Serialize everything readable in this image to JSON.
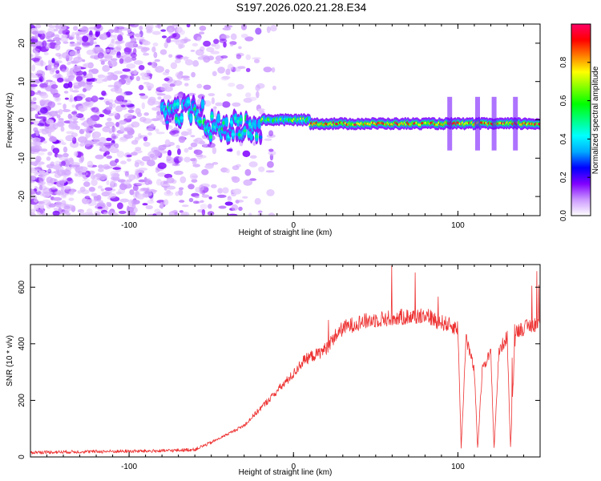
{
  "title": "S197.2026.020.21.28.E34",
  "chart_data": [
    {
      "type": "heatmap",
      "xlabel": "Height of straight line (km)",
      "ylabel": "Frequency (Hz)",
      "xlim": [
        -160,
        150
      ],
      "ylim": [
        -25,
        25
      ],
      "xticks": [
        -100,
        0,
        100
      ],
      "yticks": [
        -20,
        -10,
        0,
        10,
        20
      ],
      "colorbar": {
        "label": "Normalized spectral amplitude",
        "range": [
          0,
          1
        ],
        "ticks": [
          "0.0",
          "0.2",
          "0.4",
          "0.6",
          "0.8"
        ],
        "colors": [
          "#ffffff",
          "#cc99ff",
          "#8000ff",
          "#0000ff",
          "#00aaff",
          "#00ffff",
          "#00ff80",
          "#00ff00",
          "#80ff00",
          "#ffff00",
          "#ff8000",
          "#ff0000",
          "#ff0066"
        ]
      },
      "signal": {
        "segments": [
          {
            "x0": -80,
            "x1": -55,
            "freq": 2
          },
          {
            "x0": -55,
            "x1": -20,
            "freq": -2
          },
          {
            "x0": -20,
            "x1": 10,
            "freq": 0
          },
          {
            "x0": 10,
            "x1": 150,
            "freq": -1
          }
        ],
        "peak_amplitude": 1.0
      }
    },
    {
      "type": "line",
      "xlabel": "Height of straight line (km)",
      "ylabel": "SNR (10 * v/v)",
      "xlim": [
        -160,
        150
      ],
      "ylim": [
        0,
        680
      ],
      "xticks": [
        -100,
        0,
        100
      ],
      "yticks": [
        0,
        200,
        400,
        600
      ],
      "color": "#ee3333",
      "series": [
        {
          "name": "SNR",
          "x": [
            -160,
            -120,
            -80,
            -60,
            -50,
            -40,
            -30,
            -20,
            -10,
            -5,
            0,
            5,
            10,
            15,
            20,
            25,
            30,
            40,
            50,
            60,
            70,
            75,
            80,
            85,
            90,
            95,
            100,
            102,
            105,
            110,
            112,
            115,
            120,
            122,
            125,
            130,
            132,
            135,
            140,
            145,
            150
          ],
          "y": [
            15,
            18,
            20,
            25,
            50,
            80,
            110,
            170,
            230,
            260,
            290,
            330,
            350,
            360,
            380,
            420,
            450,
            470,
            480,
            485,
            490,
            490,
            500,
            480,
            470,
            460,
            450,
            30,
            420,
            300,
            30,
            320,
            360,
            30,
            370,
            420,
            30,
            440,
            450,
            460,
            470
          ]
        }
      ]
    }
  ]
}
